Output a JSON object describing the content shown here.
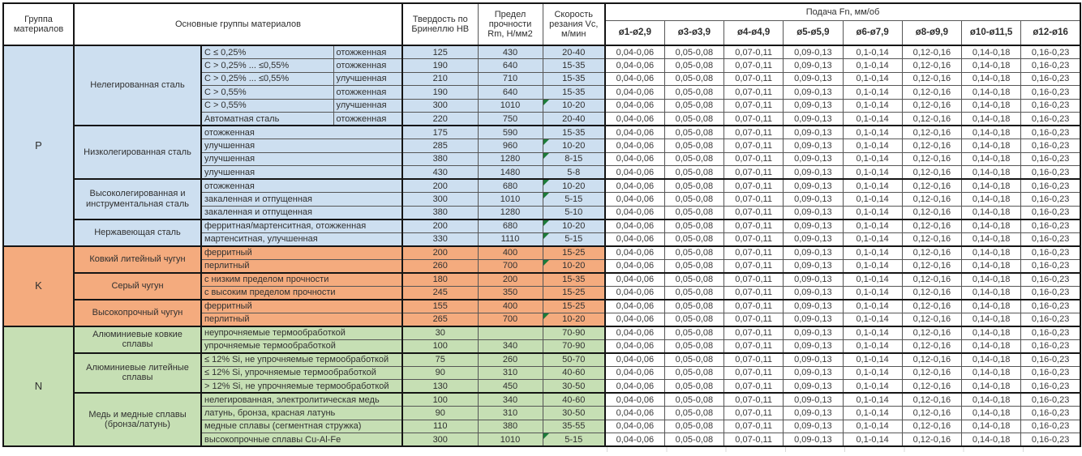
{
  "header": {
    "group": "Группа материалов",
    "main_groups": "Основные группы материалов",
    "hardness": "Твердость по Бринеллю НВ",
    "strength": "Предел прочности Rm, Н/мм2",
    "speed": "Скорость резания Vc, м/мин",
    "feed": "Подача Fn, мм/об",
    "feed_columns": [
      "ø1-ø2,9",
      "ø3-ø3,9",
      "ø4-ø4,9",
      "ø5-ø5,9",
      "ø6-ø7,9",
      "ø8-ø9,9",
      "ø10-ø11,5",
      "ø12-ø16"
    ]
  },
  "feed_values": [
    "0,04-0,06",
    "0,05-0,08",
    "0,07-0,11",
    "0,09-0,13",
    "0,1-0,14",
    "0,12-0,16",
    "0,14-0,18",
    "0,16-0,23"
  ],
  "colors": {
    "group_p": "#cddff0",
    "group_k": "#f4ab7e",
    "group_n": "#c6dfb4",
    "marker_green": "#1c7c39"
  },
  "sections": [
    {
      "letter": "P",
      "color": "#cddff0",
      "subgroups": [
        {
          "name": "Нелегированная сталь",
          "rows": [
            {
              "d1": "C ≤ 0,25%",
              "d2": "отожженная",
              "hb": "125",
              "rm": "430",
              "vc": "20-40",
              "m": false
            },
            {
              "d1": "C > 0,25% ... ≤0,55%",
              "d2": "отожженная",
              "hb": "190",
              "rm": "640",
              "vc": "15-35",
              "m": false
            },
            {
              "d1": "C > 0,25% ... ≤0,55%",
              "d2": "улучшенная",
              "hb": "210",
              "rm": "710",
              "vc": "15-35",
              "m": false
            },
            {
              "d1": "C > 0,55%",
              "d2": "отожженная",
              "hb": "190",
              "rm": "640",
              "vc": "15-35",
              "m": false
            },
            {
              "d1": "C > 0,55%",
              "d2": "улучшенная",
              "hb": "300",
              "rm": "1010",
              "vc": "10-20",
              "m": true
            },
            {
              "d1": "Автоматная сталь",
              "d2": "отожженная",
              "hb": "220",
              "rm": "750",
              "vc": "20-40",
              "m": false
            }
          ]
        },
        {
          "name": "Низколегированная сталь",
          "rows": [
            {
              "d1": "отожженная",
              "hb": "175",
              "rm": "590",
              "vc": "15-35",
              "m": false
            },
            {
              "d1": "улучшенная",
              "hb": "285",
              "rm": "960",
              "vc": "10-20",
              "m": true
            },
            {
              "d1": "улучшенная",
              "hb": "380",
              "rm": "1280",
              "vc": "8-15",
              "m": true
            },
            {
              "d1": "улучшенная",
              "hb": "430",
              "rm": "1480",
              "vc": "5-8",
              "m": false
            }
          ]
        },
        {
          "name": "Высоколегированная и инструментальная сталь",
          "rows": [
            {
              "d1": "отожженная",
              "hb": "200",
              "rm": "680",
              "vc": "10-20",
              "m": true
            },
            {
              "d1": "закаленная и отпущенная",
              "hb": "300",
              "rm": "1010",
              "vc": "5-15",
              "m": true
            },
            {
              "d1": "закаленная и отпущенная",
              "hb": "380",
              "rm": "1280",
              "vc": "5-10",
              "m": false
            }
          ]
        },
        {
          "name": "Нержавеющая сталь",
          "rows": [
            {
              "d1": "ферритная/мартенситная, отожженная",
              "hb": "200",
              "rm": "680",
              "vc": "10-20",
              "m": true
            },
            {
              "d1": "мартенситная, улучшенная",
              "hb": "330",
              "rm": "1110",
              "vc": "5-15",
              "m": true
            }
          ]
        }
      ]
    },
    {
      "letter": "K",
      "color": "#f4ab7e",
      "subgroups": [
        {
          "name": "Ковкий литейный чугун",
          "rows": [
            {
              "d1": "ферритный",
              "hb": "200",
              "rm": "400",
              "vc": "15-25",
              "m": false
            },
            {
              "d1": "перлитный",
              "hb": "260",
              "rm": "700",
              "vc": "10-20",
              "m": true
            }
          ]
        },
        {
          "name": "Серый чугун",
          "rows": [
            {
              "d1": "с низким пределом прочности",
              "hb": "180",
              "rm": "200",
              "vc": "15-35",
              "m": false
            },
            {
              "d1": "с высоким пределом прочности",
              "hb": "245",
              "rm": "350",
              "vc": "15-25",
              "m": false
            }
          ]
        },
        {
          "name": "Высокопрочный чугун",
          "rows": [
            {
              "d1": "ферритный",
              "hb": "155",
              "rm": "400",
              "vc": "15-25",
              "m": false
            },
            {
              "d1": "перлитный",
              "hb": "265",
              "rm": "700",
              "vc": "10-20",
              "m": true
            }
          ]
        }
      ]
    },
    {
      "letter": "N",
      "color": "#c6dfb4",
      "subgroups": [
        {
          "name": "Алюминиевые ковкие сплавы",
          "rows": [
            {
              "d1": "неупрочняемые термообработкой",
              "hb": "30",
              "rm": "",
              "vc": "70-90",
              "m": false
            },
            {
              "d1": "упрочняемые термообработкой",
              "hb": "100",
              "rm": "340",
              "vc": "70-90",
              "m": false
            }
          ]
        },
        {
          "name": "Алюминиевые литейные сплавы",
          "rows": [
            {
              "d1": "≤ 12% Si, не упрочняемые термообработкой",
              "hb": "75",
              "rm": "260",
              "vc": "50-70",
              "m": false
            },
            {
              "d1": "≤ 12% Si, упрочняемые термообработкой",
              "hb": "90",
              "rm": "310",
              "vc": "40-60",
              "m": false
            },
            {
              "d1": "> 12% Si, не упрочняемые термообработкой",
              "hb": "130",
              "rm": "450",
              "vc": "30-50",
              "m": false
            }
          ]
        },
        {
          "name": "Медь и медные сплавы (бронза/латунь)",
          "rows": [
            {
              "d1": "нелегированная, электролитическая медь",
              "hb": "100",
              "rm": "340",
              "vc": "40-60",
              "m": false
            },
            {
              "d1": "латунь, бронза, красная латунь",
              "hb": "90",
              "rm": "310",
              "vc": "30-50",
              "m": false
            },
            {
              "d1": "медные сплавы (сегментная стружка)",
              "hb": "110",
              "rm": "380",
              "vc": "35-55",
              "m": false
            },
            {
              "d1": "высокопрочные сплавы Cu-Al-Fe",
              "hb": "300",
              "rm": "1010",
              "vc": "5-15",
              "m": true
            }
          ]
        }
      ]
    }
  ]
}
